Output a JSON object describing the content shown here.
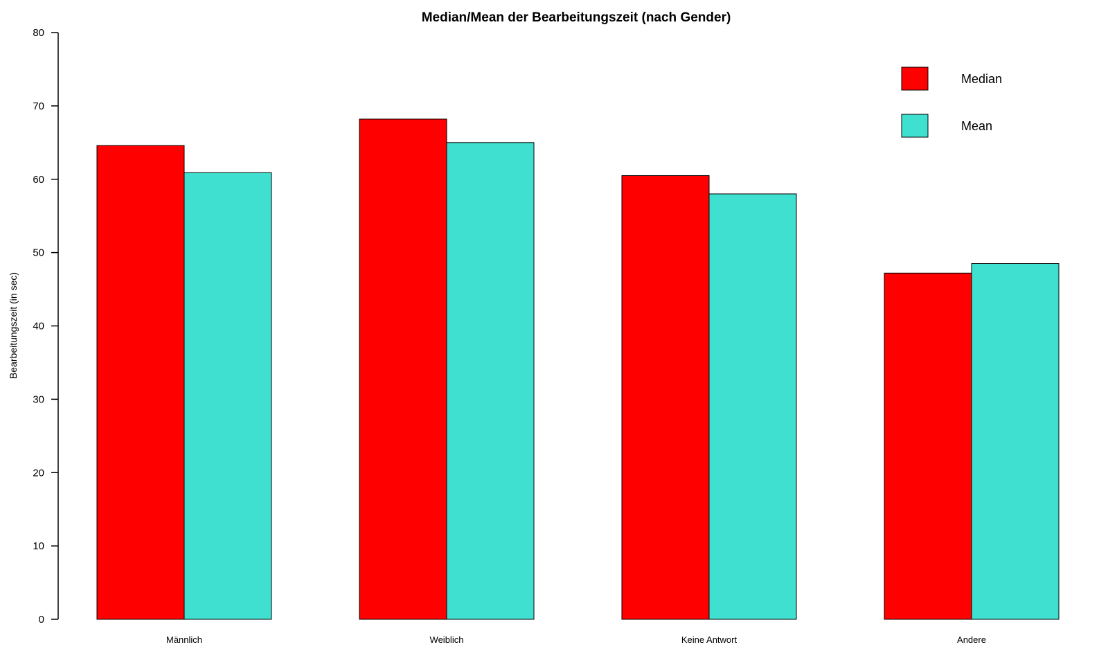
{
  "chart_data": {
    "type": "bar",
    "title": "Median/Mean der Bearbeitungszeit (nach Gender)",
    "xlabel": "",
    "ylabel": "Bearbeitungszeit (in sec)",
    "ylim": [
      0,
      80
    ],
    "yticks": [
      0,
      10,
      20,
      30,
      40,
      50,
      60,
      70,
      80
    ],
    "categories": [
      "Männlich",
      "Weiblich",
      "Keine Antwort",
      "Andere"
    ],
    "series": [
      {
        "name": "Median",
        "color": "#ff0000",
        "values": [
          64.6,
          68.2,
          60.5,
          47.2
        ]
      },
      {
        "name": "Mean",
        "color": "#40e0d0",
        "values": [
          60.9,
          65.0,
          58.0,
          48.5
        ]
      }
    ],
    "grid": false,
    "legend": "top-right"
  }
}
